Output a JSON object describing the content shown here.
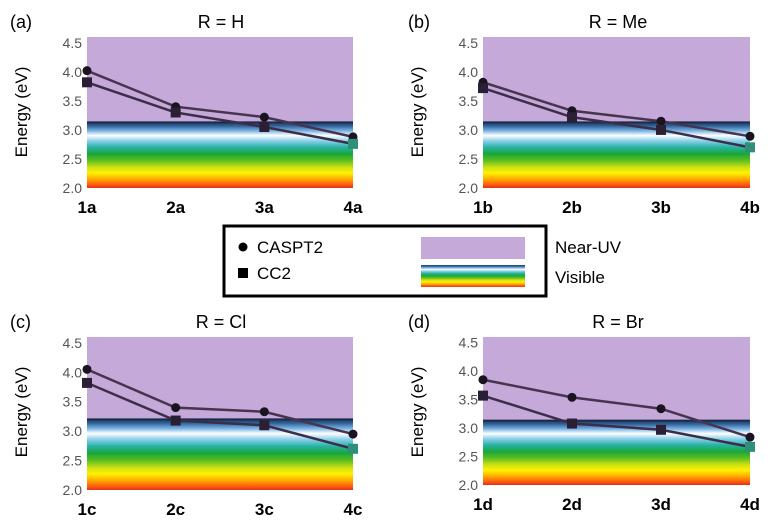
{
  "legend": {
    "caspt2": "CASPT2",
    "cc2": "CC2",
    "near_uv": "Near-UV",
    "visible": "Visible"
  },
  "colors": {
    "near_uv": "#c4a9d9",
    "line_caspt2": "#47344f",
    "line_cc2": "#3c2d48",
    "legend_border": "#000000"
  },
  "chart_data": [
    {
      "type": "line",
      "panel_label": "(a)",
      "title": "R = H",
      "ylabel": "Energy (eV)",
      "ylim": [
        2.0,
        4.6
      ],
      "yticks": [
        "2.0",
        "2.5",
        "3.0",
        "3.5",
        "4.0",
        "4.5"
      ],
      "visible_top": 3.13,
      "categories": [
        "1a",
        "2a",
        "3a",
        "4a"
      ],
      "series": [
        {
          "name": "CASPT2",
          "marker": "circle",
          "values": [
            4.02,
            3.4,
            3.22,
            2.88
          ]
        },
        {
          "name": "CC2",
          "marker": "square",
          "values": [
            3.82,
            3.3,
            3.05,
            2.76
          ]
        }
      ]
    },
    {
      "type": "line",
      "panel_label": "(b)",
      "title": "R = Me",
      "ylabel": "Energy (eV)",
      "ylim": [
        2.0,
        4.6
      ],
      "yticks": [
        "2.0",
        "2.5",
        "3.0",
        "3.5",
        "4.0",
        "4.5"
      ],
      "visible_top": 3.13,
      "categories": [
        "1b",
        "2b",
        "3b",
        "4b"
      ],
      "series": [
        {
          "name": "CASPT2",
          "marker": "circle",
          "values": [
            3.82,
            3.33,
            3.15,
            2.89
          ]
        },
        {
          "name": "CC2",
          "marker": "square",
          "values": [
            3.72,
            3.22,
            3.0,
            2.7
          ]
        }
      ]
    },
    {
      "type": "line",
      "panel_label": "(c)",
      "title": "R = Cl",
      "ylabel": "Energy (eV)",
      "ylim": [
        2.0,
        4.6
      ],
      "yticks": [
        "2.0",
        "2.5",
        "3.0",
        "3.5",
        "4.0",
        "4.5"
      ],
      "visible_top": 3.2,
      "categories": [
        "1c",
        "2c",
        "3c",
        "4c"
      ],
      "series": [
        {
          "name": "CASPT2",
          "marker": "circle",
          "values": [
            4.05,
            3.4,
            3.33,
            2.95
          ]
        },
        {
          "name": "CC2",
          "marker": "square",
          "values": [
            3.82,
            3.18,
            3.1,
            2.7
          ]
        }
      ]
    },
    {
      "type": "line",
      "panel_label": "(d)",
      "title": "R = Br",
      "ylabel": "Energy (eV)",
      "ylim": [
        2.0,
        4.6
      ],
      "yticks": [
        "2.0",
        "2.5",
        "3.0",
        "3.5",
        "4.0",
        "4.5"
      ],
      "visible_top": 3.13,
      "categories": [
        "1d",
        "2d",
        "3d",
        "4d"
      ],
      "series": [
        {
          "name": "CASPT2",
          "marker": "circle",
          "values": [
            3.85,
            3.54,
            3.34,
            2.84
          ]
        },
        {
          "name": "CC2",
          "marker": "square",
          "values": [
            3.57,
            3.08,
            2.97,
            2.67
          ]
        }
      ]
    }
  ]
}
